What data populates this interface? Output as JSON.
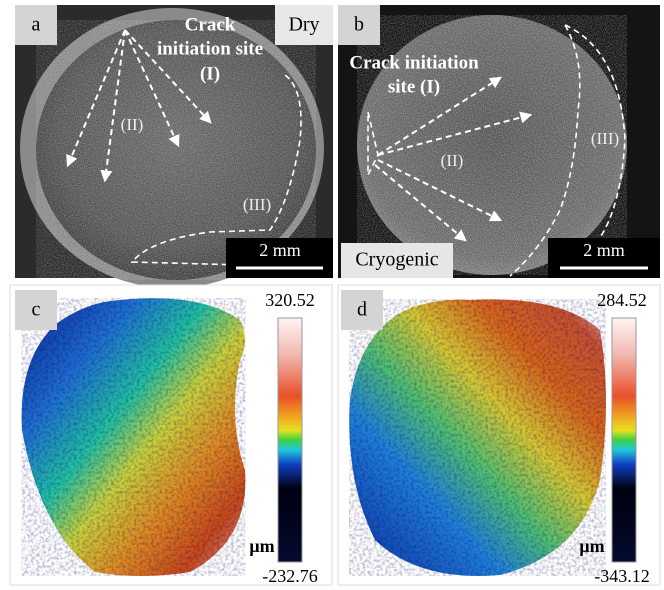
{
  "panels": [
    {
      "label": "a",
      "condition": "Dry",
      "site_lines": [
        "Crack",
        "initiation site",
        "(I)"
      ],
      "regions": [
        "(II)",
        "(III)"
      ],
      "scale_bar": "2 mm"
    },
    {
      "label": "b",
      "condition": "Cryogenic",
      "site_lines": [
        "Crack initiation",
        "site (I)"
      ],
      "regions": [
        "(II)",
        "(III)"
      ],
      "scale_bar": "2 mm"
    },
    {
      "label": "c",
      "max": 320.52,
      "unit": "μm",
      "min": -232.76
    },
    {
      "label": "d",
      "max": 284.52,
      "unit": "μm",
      "min": -343.12
    }
  ]
}
